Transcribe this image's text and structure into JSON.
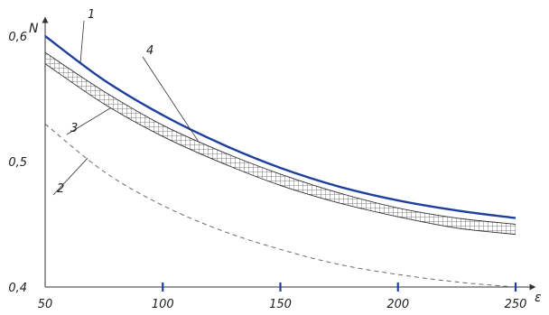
{
  "chart_data": {
    "type": "line",
    "x": [
      50,
      75,
      100,
      125,
      150,
      175,
      200,
      225,
      250
    ],
    "xlim": [
      50,
      250
    ],
    "ylim": [
      0.4,
      0.6
    ],
    "xlabel": "ε",
    "ylabel": "N",
    "x_ticks": [
      "50",
      "100",
      "150",
      "200",
      "250"
    ],
    "x_tick_values": [
      50,
      100,
      150,
      200,
      250
    ],
    "y_ticks": [
      "0,4",
      "0,5",
      "0,6"
    ],
    "y_tick_values": [
      0.4,
      0.5,
      0.6
    ],
    "series": [
      {
        "id": "1",
        "style": "solid-thick",
        "color": "#1f3f9e",
        "values": [
          0.6,
          0.565,
          0.537,
          0.514,
          0.495,
          0.48,
          0.469,
          0.461,
          0.455
        ]
      },
      {
        "id": "2",
        "style": "dashed",
        "color": "#6a6a6a",
        "values": [
          0.53,
          0.492,
          0.465,
          0.445,
          0.43,
          0.418,
          0.41,
          0.404,
          0.4
        ]
      },
      {
        "id": "band-upper",
        "style": "thin",
        "color": "#333333",
        "values": [
          0.587,
          0.556,
          0.529,
          0.508,
          0.49,
          0.475,
          0.463,
          0.455,
          0.45
        ]
      },
      {
        "id": "band-lower",
        "style": "thin",
        "color": "#333333",
        "values": [
          0.578,
          0.546,
          0.52,
          0.499,
          0.481,
          0.467,
          0.456,
          0.447,
          0.442
        ]
      }
    ],
    "band": {
      "upper": "band-upper",
      "lower": "band-lower",
      "fill": "crosshatch",
      "labels": [
        "3",
        "4"
      ]
    },
    "curve_labels": [
      {
        "text": "1",
        "series": "1"
      },
      {
        "text": "2",
        "series": "2"
      },
      {
        "text": "3",
        "series": "band-lower"
      },
      {
        "text": "4",
        "series": "band-upper"
      }
    ],
    "grid": false,
    "axis_color": "#1f3f9e"
  }
}
